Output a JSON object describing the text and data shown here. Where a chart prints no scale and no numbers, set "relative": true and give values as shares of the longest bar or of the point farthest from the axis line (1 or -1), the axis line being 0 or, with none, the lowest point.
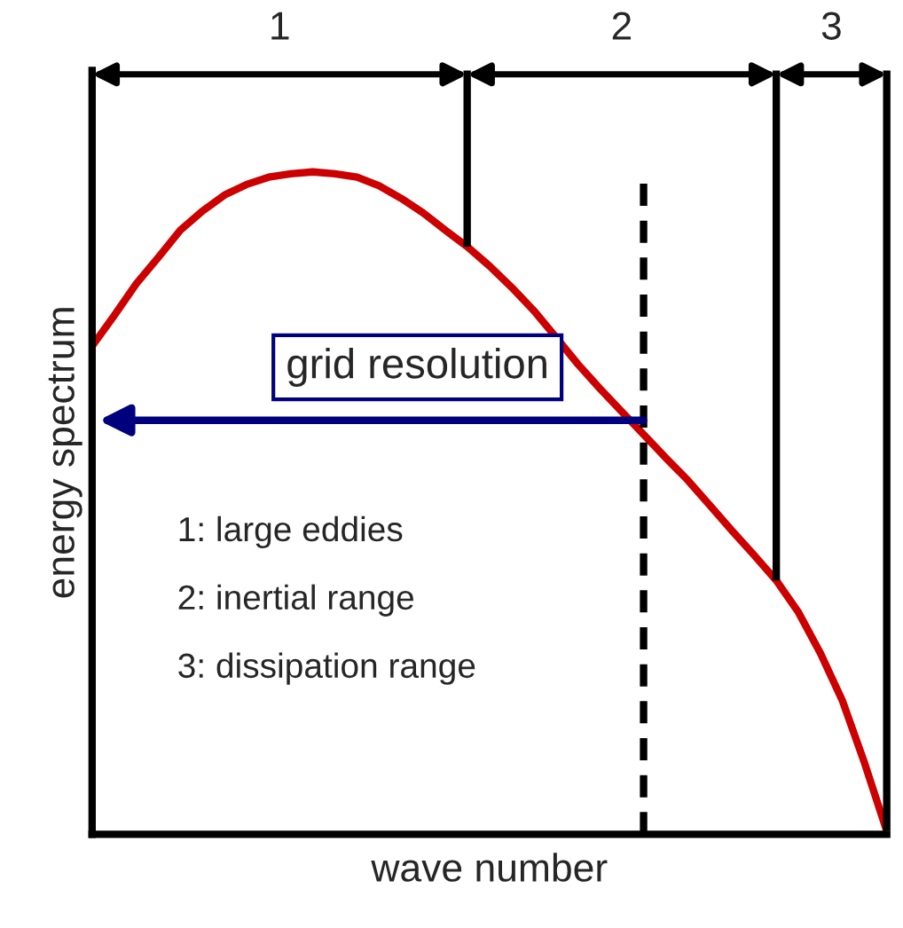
{
  "chart_data": {
    "type": "line",
    "relative": true,
    "xlabel": "wave number",
    "ylabel": "energy spectrum",
    "categories": [
      null,
      null,
      null,
      null,
      null,
      null,
      null,
      null,
      null,
      null,
      null,
      null,
      null,
      null,
      null,
      null,
      null,
      null,
      null,
      null,
      null,
      null,
      null,
      null,
      null,
      null,
      null,
      null,
      null,
      null,
      null,
      null,
      null,
      null,
      null,
      null,
      null
    ],
    "marker": "none",
    "line_style": "solid",
    "series": [
      {
        "color": "#cc0000",
        "values": [
          0.737,
          0.783,
          0.831,
          0.871,
          0.912,
          0.941,
          0.965,
          0.981,
          0.992,
          0.997,
          1,
          0.997,
          0.992,
          0.979,
          0.96,
          0.938,
          0.912,
          0.887,
          0.858,
          0.826,
          0.791,
          0.751,
          0.71,
          0.673,
          0.638,
          0.603,
          0.568,
          0.534,
          0.496,
          0.458,
          0.421,
          0.383,
          0.335,
          0.273,
          0.201,
          0.107,
          0.005
        ]
      }
    ],
    "annotations": [
      "1",
      "2",
      "3",
      "grid resolution",
      "1: large eddies",
      "2: inertial range",
      "3: dissipation range"
    ]
  }
}
